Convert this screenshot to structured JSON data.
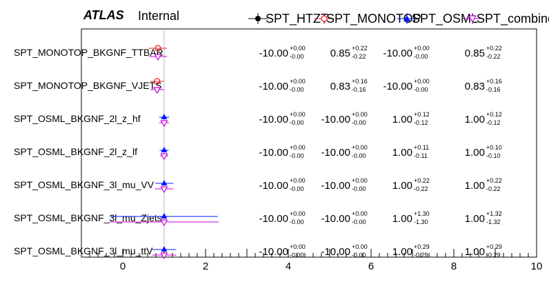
{
  "header": {
    "atlas": "ATLAS",
    "status": "Internal"
  },
  "legend": [
    {
      "name": "SPT_HTZT",
      "color": "#000000",
      "marker": "circle-filled"
    },
    {
      "name": "SPT_MONOTOP",
      "color": "#e8141c",
      "marker": "circle-open"
    },
    {
      "name": "SPT_OSML",
      "color": "#0018ff",
      "marker": "triangle-up-filled"
    },
    {
      "name": "SPT_combined",
      "color": "#c000d8",
      "marker": "triangle-down-open"
    }
  ],
  "chart_data": {
    "type": "scatter",
    "xlim": [
      -1,
      10
    ],
    "x_ticks": [
      0,
      2,
      4,
      6,
      8,
      10
    ],
    "reference_line": 1,
    "rows": [
      {
        "label": "SPT_MONOTOP_BKGNF_TTBAR",
        "values": [
          {
            "series": "SPT_HTZT",
            "val": "-10.00",
            "up": "+0.00",
            "down": "-0.00",
            "x": -10.0,
            "err_up": 0.0,
            "err_down": 0.0
          },
          {
            "series": "SPT_MONOTOP",
            "val": "0.85",
            "up": "+0.22",
            "down": "-0.22",
            "x": 0.85,
            "err_up": 0.22,
            "err_down": 0.22
          },
          {
            "series": "SPT_OSML",
            "val": "-10.00",
            "up": "+0.00",
            "down": "-0.00",
            "x": -10.0,
            "err_up": 0.0,
            "err_down": 0.0
          },
          {
            "series": "SPT_combined",
            "val": "0.85",
            "up": "+0.22",
            "down": "-0.22",
            "x": 0.85,
            "err_up": 0.22,
            "err_down": 0.22
          }
        ]
      },
      {
        "label": "SPT_MONOTOP_BKGNF_VJETS",
        "values": [
          {
            "series": "SPT_HTZT",
            "val": "-10.00",
            "up": "+0.00",
            "down": "-0.00",
            "x": -10.0,
            "err_up": 0.0,
            "err_down": 0.0
          },
          {
            "series": "SPT_MONOTOP",
            "val": "0.83",
            "up": "+0.16",
            "down": "-0.16",
            "x": 0.83,
            "err_up": 0.16,
            "err_down": 0.16
          },
          {
            "series": "SPT_OSML",
            "val": "-10.00",
            "up": "+0.00",
            "down": "-0.00",
            "x": -10.0,
            "err_up": 0.0,
            "err_down": 0.0
          },
          {
            "series": "SPT_combined",
            "val": "0.83",
            "up": "+0.16",
            "down": "-0.16",
            "x": 0.83,
            "err_up": 0.16,
            "err_down": 0.16
          }
        ]
      },
      {
        "label": "SPT_OSML_BKGNF_2l_z_hf",
        "values": [
          {
            "series": "SPT_HTZT",
            "val": "-10.00",
            "up": "+0.00",
            "down": "-0.00",
            "x": -10.0,
            "err_up": 0.0,
            "err_down": 0.0
          },
          {
            "series": "SPT_MONOTOP",
            "val": "-10.00",
            "up": "+0.00",
            "down": "-0.00",
            "x": -10.0,
            "err_up": 0.0,
            "err_down": 0.0
          },
          {
            "series": "SPT_OSML",
            "val": "1.00",
            "up": "+0.12",
            "down": "-0.12",
            "x": 1.0,
            "err_up": 0.12,
            "err_down": 0.12
          },
          {
            "series": "SPT_combined",
            "val": "1.00",
            "up": "+0.12",
            "down": "-0.12",
            "x": 1.0,
            "err_up": 0.12,
            "err_down": 0.12
          }
        ]
      },
      {
        "label": "SPT_OSML_BKGNF_2l_z_lf",
        "values": [
          {
            "series": "SPT_HTZT",
            "val": "-10.00",
            "up": "+0.00",
            "down": "-0.00",
            "x": -10.0,
            "err_up": 0.0,
            "err_down": 0.0
          },
          {
            "series": "SPT_MONOTOP",
            "val": "-10.00",
            "up": "+0.00",
            "down": "-0.00",
            "x": -10.0,
            "err_up": 0.0,
            "err_down": 0.0
          },
          {
            "series": "SPT_OSML",
            "val": "1.00",
            "up": "+0.11",
            "down": "-0.11",
            "x": 1.0,
            "err_up": 0.11,
            "err_down": 0.11
          },
          {
            "series": "SPT_combined",
            "val": "1.00",
            "up": "+0.10",
            "down": "-0.10",
            "x": 1.0,
            "err_up": 0.1,
            "err_down": 0.1
          }
        ]
      },
      {
        "label": "SPT_OSML_BKGNF_3l_mu_VV",
        "values": [
          {
            "series": "SPT_HTZT",
            "val": "-10.00",
            "up": "+0.00",
            "down": "-0.00",
            "x": -10.0,
            "err_up": 0.0,
            "err_down": 0.0
          },
          {
            "series": "SPT_MONOTOP",
            "val": "-10.00",
            "up": "+0.00",
            "down": "-0.00",
            "x": -10.0,
            "err_up": 0.0,
            "err_down": 0.0
          },
          {
            "series": "SPT_OSML",
            "val": "1.00",
            "up": "+0.22",
            "down": "-0.22",
            "x": 1.0,
            "err_up": 0.22,
            "err_down": 0.22
          },
          {
            "series": "SPT_combined",
            "val": "1.00",
            "up": "+0.22",
            "down": "-0.22",
            "x": 1.0,
            "err_up": 0.22,
            "err_down": 0.22
          }
        ]
      },
      {
        "label": "SPT_OSML_BKGNF_3l_mu_Zjets",
        "values": [
          {
            "series": "SPT_HTZT",
            "val": "-10.00",
            "up": "+0.00",
            "down": "-0.00",
            "x": -10.0,
            "err_up": 0.0,
            "err_down": 0.0
          },
          {
            "series": "SPT_MONOTOP",
            "val": "-10.00",
            "up": "+0.00",
            "down": "-0.00",
            "x": -10.0,
            "err_up": 0.0,
            "err_down": 0.0
          },
          {
            "series": "SPT_OSML",
            "val": "1.00",
            "up": "+1.30",
            "down": "-1.30",
            "x": 1.0,
            "err_up": 1.3,
            "err_down": 1.3
          },
          {
            "series": "SPT_combined",
            "val": "1.00",
            "up": "+1.32",
            "down": "-1.32",
            "x": 1.0,
            "err_up": 1.32,
            "err_down": 1.32
          }
        ]
      },
      {
        "label": "SPT_OSML_BKGNF_3l_mu_ttV",
        "values": [
          {
            "series": "SPT_HTZT",
            "val": "-10.00",
            "up": "+0.00",
            "down": "-0.00",
            "x": -10.0,
            "err_up": 0.0,
            "err_down": 0.0
          },
          {
            "series": "SPT_MONOTOP",
            "val": "-10.00",
            "up": "+0.00",
            "down": "-0.00",
            "x": -10.0,
            "err_up": 0.0,
            "err_down": 0.0
          },
          {
            "series": "SPT_OSML",
            "val": "1.00",
            "up": "+0.29",
            "down": "-0.29",
            "x": 1.0,
            "err_up": 0.29,
            "err_down": 0.29
          },
          {
            "series": "SPT_combined",
            "val": "1.00",
            "up": "+0.29",
            "down": "-0.29",
            "x": 1.0,
            "err_up": 0.29,
            "err_down": 0.29
          }
        ]
      }
    ]
  }
}
